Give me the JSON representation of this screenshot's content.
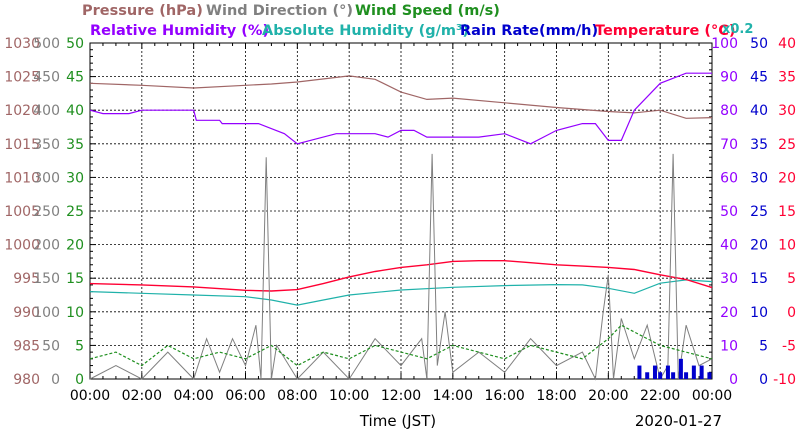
{
  "chart_data": {
    "type": "line",
    "date": "2020-01-27",
    "xlabel": "Time (JST)",
    "x_ticks": [
      "00:00",
      "02:00",
      "04:00",
      "06:00",
      "08:00",
      "10:00",
      "12:00",
      "14:00",
      "16:00",
      "18:00",
      "20:00",
      "22:00",
      "00:00"
    ],
    "xlim_hours": [
      0,
      24
    ],
    "legend": {
      "row1": [
        {
          "name": "Pressure (hPa)",
          "color": "#a06666"
        },
        {
          "name": "Wind Direction (°)",
          "color": "#808080"
        },
        {
          "name": "Wind Speed (m/s)",
          "color": "#1f8f1f"
        }
      ],
      "row2": [
        {
          "name": "Relative Humidity (%)",
          "color": "#9400ff"
        },
        {
          "name": "Absolute Humidity (g/m³)",
          "color": "#20b2aa"
        },
        {
          "name": "Rain Rate(mm/h)",
          "color": "#0000cc"
        },
        {
          "name": "Temperature (°C)",
          "color": "#ff0033"
        }
      ],
      "multiplier": "x0.2"
    },
    "axes": {
      "pressure": {
        "color": "#a06666",
        "ticks": [
          "1030",
          "1025",
          "1020",
          "1015",
          "1010",
          "1005",
          "1000",
          "995",
          "990",
          "985",
          "980"
        ],
        "range": [
          980,
          1030
        ]
      },
      "wind_direction": {
        "color": "#808080",
        "ticks": [
          "500",
          "450",
          "400",
          "350",
          "300",
          "250",
          "200",
          "150",
          "100",
          "50",
          "0"
        ],
        "range": [
          0,
          500
        ]
      },
      "wind_speed": {
        "color": "#1f8f1f",
        "ticks": [
          "50",
          "45",
          "40",
          "35",
          "30",
          "25",
          "20",
          "15",
          "10",
          "5",
          "0"
        ],
        "range": [
          0,
          50
        ]
      },
      "humidity": {
        "color": "#9400ff",
        "ticks": [
          "100",
          "90",
          "80",
          "70",
          "60",
          "50",
          "40",
          "30",
          "20",
          "10",
          "0"
        ],
        "range": [
          0,
          100
        ]
      },
      "rain_rate": {
        "color": "#0000cc",
        "ticks": [
          "50",
          "45",
          "40",
          "35",
          "30",
          "25",
          "20",
          "15",
          "10",
          "5",
          "0"
        ],
        "range": [
          0,
          50
        ]
      },
      "temperature": {
        "color": "#ff0033",
        "ticks": [
          "40",
          "35",
          "30",
          "25",
          "20",
          "15",
          "10",
          "5",
          "0",
          "-5",
          "-10"
        ],
        "range": [
          -10,
          40
        ]
      }
    },
    "series": [
      {
        "key": "pressure",
        "axis": "pressure",
        "x": [
          0,
          2,
          4,
          6,
          7,
          8,
          10,
          11,
          12,
          13,
          14,
          16,
          18,
          20,
          21,
          22,
          23,
          24
        ],
        "values": [
          1024.0,
          1023.7,
          1023.3,
          1023.7,
          1023.9,
          1024.2,
          1025.1,
          1024.6,
          1022.7,
          1021.6,
          1021.8,
          1021.1,
          1020.4,
          1019.8,
          1019.6,
          1020.0,
          1018.8,
          1018.9
        ]
      },
      {
        "key": "relative_humidity",
        "axis": "humidity",
        "x": [
          0,
          0.5,
          1.5,
          2,
          4,
          4.1,
          5,
          5.1,
          6.5,
          7.5,
          8.0,
          8.5,
          9.5,
          10.5,
          11,
          11.5,
          12,
          12.5,
          13,
          14,
          15,
          16,
          17,
          17.5,
          18,
          19,
          19.5,
          20,
          20.5,
          21,
          22,
          23,
          24
        ],
        "values": [
          80,
          79,
          79,
          80,
          80,
          77,
          77,
          76,
          76,
          73,
          70,
          71,
          73,
          73,
          73,
          72,
          74,
          74,
          72,
          72,
          72,
          73,
          70,
          72,
          74,
          76,
          76,
          71,
          71,
          80,
          88,
          91,
          91
        ]
      },
      {
        "key": "absolute_humidity",
        "axis": "humidity",
        "x": [
          0,
          2,
          4,
          6,
          7,
          8,
          9,
          10,
          12,
          14,
          16,
          18,
          19,
          20,
          21,
          22,
          23,
          24
        ],
        "values": [
          26,
          25.5,
          25,
          24.5,
          23.5,
          22,
          23.5,
          25,
          26.5,
          27.3,
          27.8,
          28.1,
          28,
          27,
          25.5,
          28.5,
          29.5,
          29
        ]
      },
      {
        "key": "temperature",
        "axis": "temperature",
        "x": [
          0,
          2,
          4,
          6,
          7,
          8,
          9,
          10,
          11,
          12,
          13,
          14,
          15,
          16,
          17,
          18,
          19,
          20,
          21,
          22,
          23,
          24
        ],
        "values": [
          4.2,
          4.0,
          3.7,
          3.2,
          3.1,
          3.3,
          4.2,
          5.2,
          6.0,
          6.6,
          7.0,
          7.5,
          7.6,
          7.6,
          7.3,
          7.0,
          6.8,
          6.6,
          6.3,
          5.5,
          4.8,
          3.6
        ]
      },
      {
        "key": "wind_direction",
        "axis": "wind_direction",
        "x": [
          0,
          1,
          2,
          3,
          4,
          4.5,
          5,
          5.5,
          6,
          6.4,
          6.6,
          6.8,
          7.0,
          7.2,
          8,
          9,
          10,
          11,
          12,
          12.8,
          13.0,
          13.2,
          13.4,
          13.7,
          14,
          15,
          16,
          17,
          18,
          19,
          19.5,
          19.8,
          20.0,
          20.2,
          20.5,
          21,
          21.5,
          22,
          22.3,
          22.5,
          22.7,
          23,
          23.5,
          24
        ],
        "values": [
          0,
          20,
          0,
          40,
          0,
          60,
          10,
          60,
          20,
          80,
          0,
          330,
          0,
          50,
          0,
          40,
          0,
          60,
          20,
          60,
          0,
          335,
          20,
          100,
          10,
          40,
          10,
          60,
          20,
          40,
          0,
          100,
          155,
          0,
          90,
          30,
          80,
          0,
          20,
          335,
          0,
          80,
          20,
          30
        ]
      },
      {
        "key": "wind_speed",
        "axis": "wind_speed",
        "x": [
          0,
          1,
          2,
          3,
          4,
          5,
          6,
          7,
          8,
          9,
          10,
          11,
          12,
          13,
          14,
          15,
          16,
          17,
          18,
          19,
          20,
          20.5,
          21,
          22,
          23,
          24
        ],
        "values": [
          3,
          4,
          2,
          5,
          3,
          4,
          3,
          5,
          2,
          4,
          3,
          5,
          4,
          3,
          5,
          4,
          3,
          5,
          4,
          3,
          6,
          8,
          7,
          5,
          4,
          3
        ]
      },
      {
        "key": "rain_rate",
        "axis": "rain_rate",
        "x": [
          21.2,
          21.5,
          21.8,
          22.0,
          22.3,
          22.5,
          22.8,
          23.0,
          23.3,
          23.6,
          23.9
        ],
        "values": [
          2,
          1,
          2,
          1,
          2,
          1,
          3,
          1,
          2,
          2,
          1
        ]
      }
    ]
  }
}
